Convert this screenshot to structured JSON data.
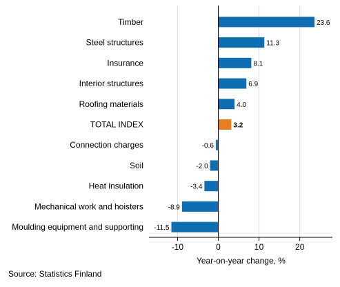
{
  "chart_data": {
    "type": "bar",
    "orientation": "horizontal",
    "categories": [
      "Timber",
      "Steel structures",
      "Insurance",
      "Interior structures",
      "Roofing materials",
      "TOTAL INDEX",
      "Connection charges",
      "Soil",
      "Heat insulation",
      "Mechanical work and hoisters",
      "Moulding equipment and supporting"
    ],
    "values": [
      23.6,
      11.3,
      8.1,
      6.9,
      4.0,
      3.2,
      -0.6,
      -2.0,
      -3.4,
      -8.9,
      -11.5
    ],
    "value_labels": [
      "23.6",
      "11.3",
      "8.1",
      "6.9",
      "4.0",
      "3.2",
      "-0.6",
      "-2.0",
      "-3.4",
      "-8.9",
      "-11.5"
    ],
    "highlight_category": "TOTAL INDEX",
    "xlabel": "Year-on-year change, %",
    "ylabel": "",
    "xlim": [
      -17,
      28
    ],
    "xticks": [
      -10,
      0,
      10,
      20
    ],
    "xtick_labels": [
      "-10",
      "0",
      "10",
      "20"
    ],
    "grid": "vertical",
    "colors": {
      "bar": "#0e6eb1",
      "highlight": "#e87d1e",
      "grid": "#dcdcdc",
      "zero_line": "#000000"
    }
  },
  "source": "Source: Statistics Finland"
}
